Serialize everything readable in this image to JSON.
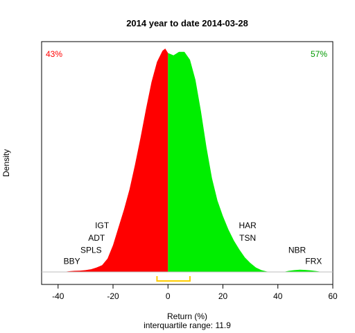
{
  "chart_data": {
    "type": "area",
    "title": "2014  year to date 2014-03-28",
    "xlabel": "Return (%)",
    "ylabel": "Density",
    "subtitle": "interquartile range: 11.9",
    "xlim": [
      -46,
      60
    ],
    "ylim": [
      0,
      1.0
    ],
    "x_ticks": [
      -40,
      -20,
      0,
      20,
      40,
      60
    ],
    "split_at": 0,
    "pct_left": "43%",
    "pct_right": "57%",
    "colors": {
      "negative": "#ff0000",
      "positive": "#00ee00",
      "iqr": "#ffcc00",
      "baseline": "#bebebe"
    },
    "iqr_range": [
      -4,
      8
    ],
    "density": [
      [
        -38,
        0
      ],
      [
        -36,
        0.003
      ],
      [
        -34,
        0.005
      ],
      [
        -32,
        0.006
      ],
      [
        -30,
        0.008
      ],
      [
        -28,
        0.012
      ],
      [
        -26,
        0.02
      ],
      [
        -24,
        0.03
      ],
      [
        -22,
        0.06
      ],
      [
        -20,
        0.12
      ],
      [
        -18,
        0.2
      ],
      [
        -16,
        0.28
      ],
      [
        -14,
        0.37
      ],
      [
        -12,
        0.48
      ],
      [
        -10,
        0.6
      ],
      [
        -8,
        0.73
      ],
      [
        -6,
        0.85
      ],
      [
        -4,
        0.94
      ],
      [
        -2,
        0.99
      ],
      [
        -1,
        1.0
      ],
      [
        0,
        0.98
      ],
      [
        2,
        0.97
      ],
      [
        4,
        0.985
      ],
      [
        6,
        0.985
      ],
      [
        8,
        0.95
      ],
      [
        10,
        0.86
      ],
      [
        12,
        0.72
      ],
      [
        14,
        0.56
      ],
      [
        16,
        0.42
      ],
      [
        18,
        0.32
      ],
      [
        20,
        0.25
      ],
      [
        22,
        0.19
      ],
      [
        24,
        0.14
      ],
      [
        26,
        0.1
      ],
      [
        28,
        0.065
      ],
      [
        30,
        0.04
      ],
      [
        32,
        0.02
      ],
      [
        34,
        0.008
      ],
      [
        36,
        0.002
      ],
      [
        38,
        0
      ],
      [
        42,
        0
      ],
      [
        44,
        0.005
      ],
      [
        46,
        0.008
      ],
      [
        48,
        0.01
      ],
      [
        50,
        0.009
      ],
      [
        52,
        0.007
      ],
      [
        54,
        0.004
      ],
      [
        56,
        0
      ]
    ],
    "annotations": [
      {
        "label": "BBY",
        "x": -35,
        "y": 0.035
      },
      {
        "label": "SPLS",
        "x": -28,
        "y": 0.085
      },
      {
        "label": "ADT",
        "x": -26,
        "y": 0.14
      },
      {
        "label": "IGT",
        "x": -24,
        "y": 0.195
      },
      {
        "label": "HAR",
        "x": 29,
        "y": 0.195
      },
      {
        "label": "TSN",
        "x": 29,
        "y": 0.14
      },
      {
        "label": "NBR",
        "x": 47,
        "y": 0.085
      },
      {
        "label": "FRX",
        "x": 53,
        "y": 0.035
      }
    ]
  }
}
